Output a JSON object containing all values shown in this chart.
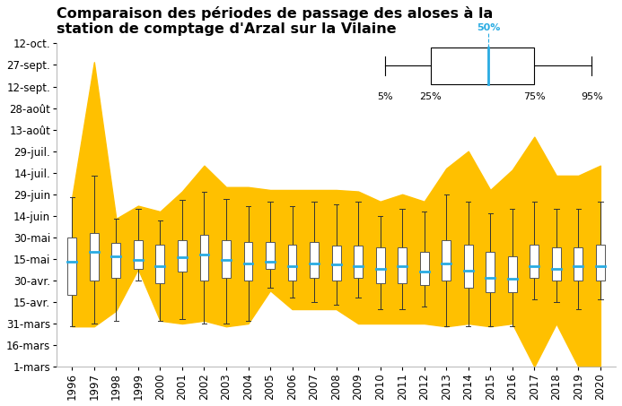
{
  "title": "Comparaison des périodes de passage des aloses à la\nstation de comptage d'Arzal sur la Vilaine",
  "years": [
    1996,
    1997,
    1998,
    1999,
    2000,
    2001,
    2002,
    2003,
    2004,
    2005,
    2006,
    2007,
    2008,
    2009,
    2010,
    2011,
    2012,
    2013,
    2014,
    2015,
    2016,
    2017,
    2018,
    2019,
    2020
  ],
  "yticks_labels": [
    "1-mars",
    "16-mars",
    "31-mars",
    "15-avr.",
    "30-avr.",
    "15-mai",
    "30-mai",
    "14-juin",
    "29-juin",
    "14-juil.",
    "29-juil.",
    "13-août",
    "28-août",
    "12-sept.",
    "27-sept.",
    "12-oct."
  ],
  "yticks_days": [
    60,
    75,
    90,
    105,
    120,
    135,
    150,
    165,
    180,
    195,
    210,
    225,
    240,
    255,
    270,
    285
  ],
  "box_data": {
    "p5": [
      88,
      90,
      92,
      120,
      92,
      93,
      90,
      90,
      92,
      115,
      108,
      105,
      103,
      108,
      100,
      100,
      102,
      88,
      88,
      88,
      88,
      107,
      105,
      100,
      107
    ],
    "p25": [
      110,
      120,
      122,
      128,
      118,
      126,
      120,
      122,
      120,
      128,
      120,
      122,
      120,
      122,
      118,
      118,
      117,
      120,
      115,
      112,
      112,
      122,
      120,
      120,
      120
    ],
    "p50": [
      133,
      140,
      137,
      134,
      130,
      136,
      138,
      134,
      132,
      133,
      130,
      132,
      131,
      130,
      128,
      130,
      126,
      132,
      127,
      122,
      121,
      130,
      128,
      130,
      130
    ],
    "p75": [
      150,
      153,
      146,
      148,
      145,
      148,
      152,
      148,
      147,
      147,
      145,
      147,
      144,
      144,
      143,
      143,
      140,
      148,
      145,
      140,
      137,
      145,
      143,
      143,
      145
    ],
    "p95": [
      178,
      193,
      163,
      170,
      162,
      176,
      182,
      177,
      172,
      175,
      172,
      175,
      173,
      175,
      165,
      170,
      168,
      180,
      175,
      167,
      170,
      175,
      170,
      170,
      175
    ]
  },
  "area_top": [
    178,
    272,
    163,
    172,
    168,
    182,
    200,
    185,
    185,
    183,
    183,
    183,
    183,
    182,
    175,
    180,
    175,
    198,
    210,
    183,
    197,
    220,
    193,
    193,
    200
  ],
  "area_bottom": [
    88,
    88,
    99,
    128,
    92,
    90,
    92,
    88,
    90,
    113,
    100,
    100,
    100,
    90,
    90,
    90,
    90,
    88,
    90,
    88,
    90,
    60,
    90,
    60,
    60
  ],
  "box_color": "#ffffff",
  "box_edge_color": "#555555",
  "median_color": "#29abe2",
  "area_color": "#ffc000",
  "whisker_color": "#333333",
  "background_color": "#ffffff",
  "title_fontsize": 11.5,
  "tick_fontsize": 8.5,
  "box_width": 0.4
}
